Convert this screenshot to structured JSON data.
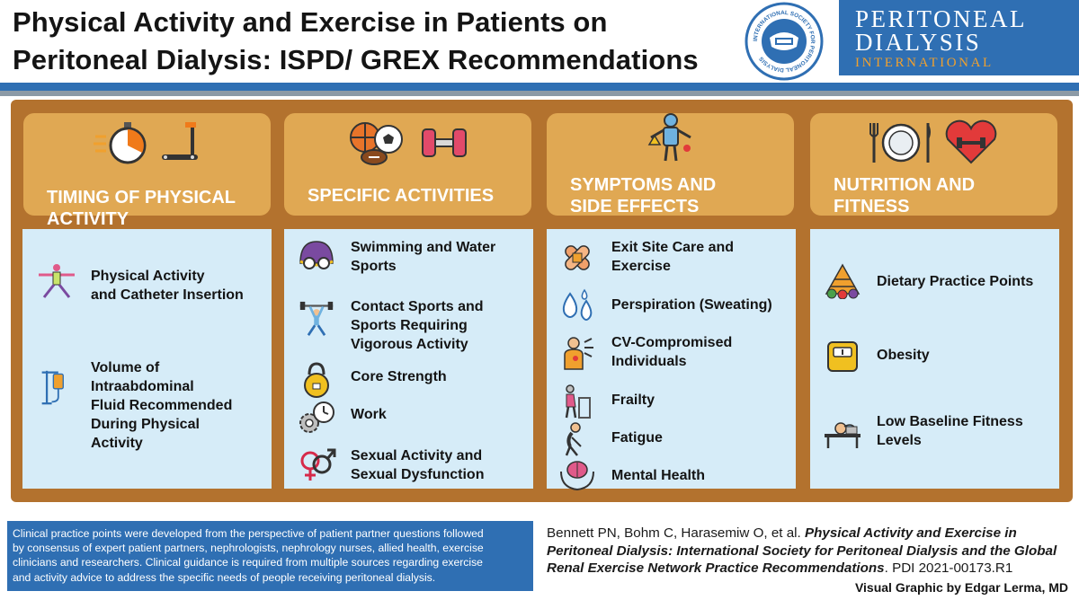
{
  "header": {
    "title_line1": "Physical Activity and Exercise in Patients on",
    "title_line2": "Peritoneal Dialysis: ISPD/ GREX Recommendations",
    "seal_text": "INTERNATIONAL SOCIETY FOR PERITONEAL DIALYSIS",
    "brand_line1": "PERITONEAL",
    "brand_line2": "DIALYSIS",
    "brand_line3": "INTERNATIONAL"
  },
  "colors": {
    "brand_blue": "#2f6fb3",
    "frame_brown": "#b3722e",
    "category_tan": "#e0a853",
    "panel_blue": "#d6ecf8",
    "accent_orange": "#f0a02e"
  },
  "columns": [
    {
      "title_line1": "TIMING OF PHYSICAL",
      "title_line2": "ACTIVITY",
      "icons": [
        "stopwatch-icon",
        "treadmill-icon"
      ],
      "items": [
        {
          "icon": "yoga-pose-icon",
          "line1": "Physical Activity",
          "line2": "and Catheter Insertion"
        },
        {
          "icon": "dialysis-bag-stand-icon",
          "line1": "Volume of",
          "line2": "Intraabdominal",
          "line3": "Fluid Recommended",
          "line4": "During Physical",
          "line5": "Activity"
        }
      ]
    },
    {
      "title_line1": "SPECIFIC ACTIVITIES",
      "icons": [
        "sports-balls-icon",
        "dumbbell-icon"
      ],
      "items": [
        {
          "icon": "swim-cap-goggles-icon",
          "line1": "Swimming and Water",
          "line2": "Sports"
        },
        {
          "icon": "weightlifter-icon",
          "line1": "Contact Sports and",
          "line2": "Sports Requiring",
          "line3": "Vigorous Activity"
        },
        {
          "icon": "kettlebell-icon",
          "line1": "Core Strength"
        },
        {
          "icon": "gears-clock-icon",
          "line1": "Work"
        },
        {
          "icon": "gender-symbols-icon",
          "line1": "Sexual Activity and",
          "line2": "Sexual Dysfunction"
        }
      ]
    },
    {
      "title_line1": "SYMPTOMS AND",
      "title_line2": "SIDE EFFECTS",
      "icons": [
        "body-symptoms-icon"
      ],
      "items": [
        {
          "icon": "bandage-icon",
          "line1": "Exit Site Care and",
          "line2": "Exercise"
        },
        {
          "icon": "sweat-drops-icon",
          "line1": "Perspiration (Sweating)"
        },
        {
          "icon": "chest-pain-icon",
          "line1": "CV-Compromised",
          "line2": "Individuals"
        },
        {
          "icon": "elderly-walker-icon",
          "line1": "Frailty"
        },
        {
          "icon": "tired-person-icon",
          "line1": "Fatigue"
        },
        {
          "icon": "brain-hands-icon",
          "line1": "Mental Health"
        }
      ]
    },
    {
      "title_line1": "NUTRITION AND",
      "title_line2": "FITNESS",
      "icons": [
        "plate-cutlery-icon",
        "heart-dumbbell-icon"
      ],
      "items": [
        {
          "icon": "food-pyramid-icon",
          "line1": "Dietary Practice Points"
        },
        {
          "icon": "scale-icon",
          "line1": "Obesity"
        },
        {
          "icon": "exhausted-desk-icon",
          "line1": "Low Baseline Fitness",
          "line2": "Levels"
        }
      ]
    }
  ],
  "footer": {
    "note_lines": [
      "Clinical practice points were developed from the perspective of patient partner questions followed",
      "by consensus of expert patient partners, nephrologists, nephrology nurses, allied health, exercise",
      "clinicians and researchers. Clinical guidance is required from multiple sources regarding exercise",
      "and activity advice to address the specific needs of people receiving peritoneal dialysis."
    ],
    "citation_authors": "Bennett PN, Bohm C, Harasemiw O, et al. ",
    "citation_title": "Physical Activity and Exercise in Peritoneal Dialysis: International Society for Peritoneal Dialysis and the Global Renal Exercise Network Practice Recommendations",
    "citation_tail": ". PDI 2021-00173.R1",
    "credit": "Visual Graphic by Edgar Lerma, MD"
  }
}
